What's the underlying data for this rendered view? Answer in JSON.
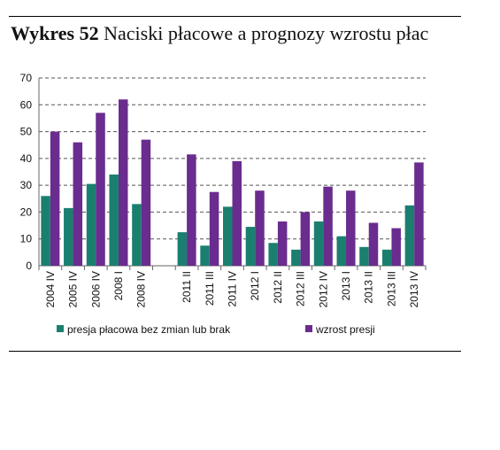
{
  "figure": {
    "label": "Wykres 52",
    "title": "Naciski płacowe a prognozy wzrostu płac"
  },
  "chart_data": {
    "type": "bar",
    "categories": [
      "2004 IV",
      "2005 IV",
      "2006 IV",
      "2008 I",
      "2008 IV",
      "",
      "2011 II",
      "2011 III",
      "2011 IV",
      "2012 I",
      "2012 II",
      "2012 III",
      "2012 IV",
      "2013 I",
      "2013 II",
      "2013 III",
      "2013 IV"
    ],
    "series": [
      {
        "name": "presja płacowa bez zmian lub brak",
        "color": "#1b7f70",
        "values": [
          26,
          21.5,
          30.5,
          34,
          23,
          null,
          12.5,
          7.5,
          22,
          14.5,
          8.5,
          6,
          16.5,
          11,
          7,
          6,
          22.5
        ]
      },
      {
        "name": "wzrost presji",
        "color": "#6a2c8e",
        "values": [
          50,
          46,
          57,
          62,
          47,
          null,
          41.5,
          27.5,
          39,
          28,
          16.5,
          20,
          29.5,
          28,
          16,
          14,
          38.5
        ]
      }
    ],
    "ylim": [
      0,
      70
    ],
    "yticks": [
      "0",
      "10",
      "20",
      "30",
      "40",
      "50",
      "60",
      "70"
    ],
    "grid": true,
    "legend_position": "bottom"
  }
}
